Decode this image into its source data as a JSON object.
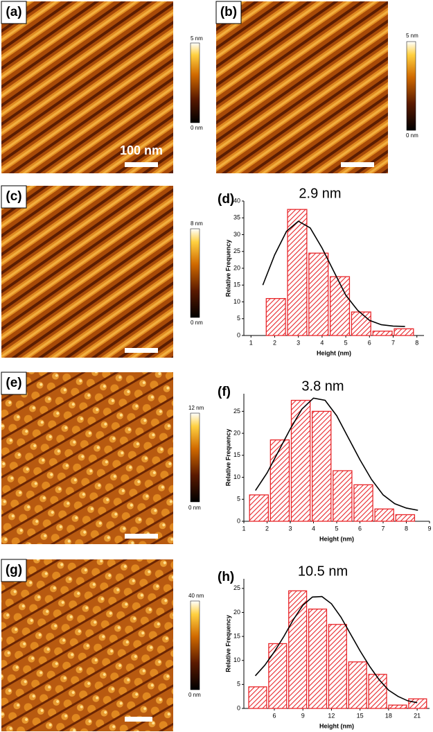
{
  "panels": [
    {
      "label": "(a)",
      "scale_max": "5 nm",
      "scale_min": "0 nm",
      "scale_bar": "100 nm"
    },
    {
      "label": "(b)",
      "scale_max": "5 nm",
      "scale_min": "0 nm"
    },
    {
      "label": "(c)",
      "scale_max": "8 nm",
      "scale_min": "0 nm"
    },
    {
      "label": "(e)",
      "scale_max": "12 nm",
      "scale_min": "0 nm"
    },
    {
      "label": "(g)",
      "scale_max": "40 nm",
      "scale_min": "0 nm"
    }
  ],
  "chart_data": [
    {
      "type": "histogram",
      "label": "(d)",
      "annotation": "2.9 nm",
      "xlabel": "Height (nm)",
      "ylabel": "Relative Frequency",
      "color": "#e8262a",
      "bins": [
        1.6,
        2.5,
        3.4,
        4.3,
        5.2,
        6.1,
        7.0,
        7.9
      ],
      "values": [
        11,
        37.5,
        24.5,
        17.5,
        7,
        1.3,
        2
      ],
      "xlim": [
        0.7,
        8.3
      ],
      "ylim": [
        0,
        40
      ],
      "xticks": [
        1,
        2,
        3,
        4,
        5,
        6,
        7,
        8
      ],
      "yticks": [
        0,
        5,
        10,
        15,
        20,
        25,
        30,
        35,
        40
      ],
      "fit": {
        "x": [
          1.5,
          2,
          2.5,
          3,
          3.5,
          4,
          4.5,
          5,
          5.5,
          6,
          6.5,
          7,
          7.5
        ],
        "values": [
          15,
          24,
          31,
          34,
          32,
          26,
          19,
          12,
          7.5,
          4.5,
          3.2,
          2.8,
          2.7
        ],
        "color": "#000000"
      }
    },
    {
      "type": "histogram",
      "label": "(f)",
      "annotation": "3.8 nm",
      "xlabel": "Height (nm)",
      "ylabel": "Relative Frequency",
      "color": "#e8262a",
      "bins": [
        1.2,
        2.1,
        3.0,
        3.9,
        4.8,
        5.7,
        6.6,
        7.5,
        8.4
      ],
      "values": [
        6,
        18.5,
        27.5,
        25,
        11.5,
        8.3,
        2.8,
        1.5
      ],
      "xlim": [
        1,
        9
      ],
      "ylim": [
        0,
        29
      ],
      "xticks": [
        1,
        2,
        3,
        4,
        5,
        6,
        7,
        8,
        9
      ],
      "yticks": [
        0,
        5,
        10,
        15,
        20,
        25
      ],
      "fit": {
        "x": [
          1.5,
          2,
          2.5,
          3,
          3.5,
          4,
          4.5,
          5,
          5.5,
          6,
          6.5,
          7,
          7.5,
          8,
          8.5
        ],
        "values": [
          7,
          11,
          16,
          21,
          25.5,
          28,
          27.5,
          24,
          19,
          14,
          9.5,
          6,
          4,
          3,
          2.5
        ],
        "color": "#000000"
      }
    },
    {
      "type": "histogram",
      "label": "(h)",
      "annotation": "10.5 nm",
      "xlabel": "Height (nm)",
      "ylabel": "Relative Frequency",
      "color": "#e8262a",
      "bins": [
        3.2,
        5.3,
        7.4,
        9.5,
        11.6,
        13.7,
        15.8,
        17.9,
        20.0,
        22.1
      ],
      "values": [
        4.5,
        13.5,
        24.5,
        20.7,
        17.5,
        9.7,
        7.1,
        0.7,
        2
      ],
      "xlim": [
        2.8,
        22.3
      ],
      "ylim": [
        0,
        27
      ],
      "xticks": [
        6,
        9,
        12,
        15,
        18,
        21
      ],
      "yticks": [
        0,
        5,
        10,
        15,
        20,
        25
      ],
      "fit": {
        "x": [
          4,
          5,
          6,
          7,
          8,
          9,
          10,
          11,
          12,
          13,
          14,
          15,
          16,
          17,
          18,
          19,
          20,
          21
        ],
        "values": [
          6.8,
          9,
          11.8,
          15,
          18.5,
          21.5,
          23.2,
          23.3,
          21.8,
          19,
          15.5,
          12,
          8.8,
          6,
          3.8,
          2.5,
          1.6,
          1.2
        ],
        "color": "#000000"
      }
    }
  ]
}
